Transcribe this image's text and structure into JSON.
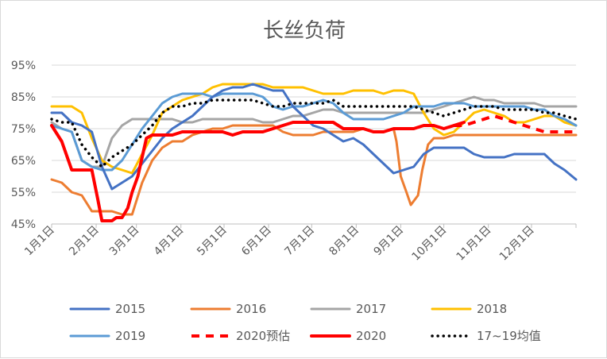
{
  "chart_data": {
    "type": "line",
    "title": "长丝负荷",
    "xlabel": "",
    "ylabel": "",
    "ylim": [
      45,
      95
    ],
    "y_ticks": [
      "45%",
      "55%",
      "65%",
      "75%",
      "85%",
      "95%"
    ],
    "y_tick_values": [
      45,
      55,
      65,
      75,
      85,
      95
    ],
    "x_ticks": [
      "1月1日",
      "2月1日",
      "3月1日",
      "4月1日",
      "5月1日",
      "6月1日",
      "7月1日",
      "8月1日",
      "9月1日",
      "10月1日",
      "11月1日",
      "12月1日"
    ],
    "x_tick_values": [
      0,
      31,
      59,
      90,
      120,
      151,
      181,
      212,
      243,
      273,
      304,
      334
    ],
    "xlim": [
      0,
      365
    ],
    "grid": "horizontal",
    "legend_position": "bottom",
    "series": [
      {
        "name": "2015",
        "color": "#4472C4",
        "style": "solid",
        "x": [
          0,
          7,
          14,
          21,
          28,
          35,
          42,
          49,
          56,
          63,
          70,
          77,
          84,
          91,
          98,
          105,
          112,
          119,
          126,
          133,
          140,
          147,
          154,
          161,
          168,
          175,
          182,
          189,
          196,
          203,
          210,
          217,
          224,
          231,
          238,
          245,
          252,
          259,
          266,
          273,
          280,
          287,
          294,
          301,
          308,
          315,
          322,
          329,
          336,
          343,
          350,
          357,
          365
        ],
        "y": [
          80,
          80,
          77,
          76,
          74,
          63,
          56,
          58,
          60,
          64,
          68,
          72,
          75,
          77,
          79,
          82,
          85,
          87,
          88,
          88,
          89,
          88,
          87,
          87,
          82,
          79,
          76,
          75,
          73,
          71,
          72,
          70,
          67,
          64,
          61,
          62,
          63,
          67,
          69,
          69,
          69,
          69,
          67,
          66,
          66,
          66,
          67,
          67,
          67,
          67,
          64,
          62,
          59
        ]
      },
      {
        "name": "2016",
        "color": "#ED7D31",
        "style": "solid",
        "x": [
          0,
          7,
          14,
          21,
          28,
          35,
          42,
          49,
          56,
          63,
          70,
          77,
          84,
          91,
          98,
          105,
          112,
          119,
          126,
          133,
          140,
          147,
          154,
          161,
          168,
          175,
          182,
          189,
          196,
          203,
          210,
          217,
          224,
          231,
          238,
          240,
          243,
          247,
          250,
          255,
          258,
          262,
          266,
          273,
          280,
          287,
          294,
          301,
          308,
          315,
          322,
          329,
          336,
          343,
          350,
          357,
          365
        ],
        "y": [
          59,
          58,
          55,
          54,
          49,
          49,
          49,
          48,
          48,
          58,
          65,
          69,
          71,
          71,
          73,
          74,
          75,
          75,
          76,
          76,
          76,
          76,
          76,
          74,
          73,
          73,
          73,
          74,
          74,
          74,
          74,
          75,
          74,
          74,
          75,
          71,
          60,
          55,
          51,
          54,
          62,
          70,
          72,
          72,
          73,
          73,
          73,
          73,
          73,
          73,
          73,
          73,
          73,
          73,
          73,
          73,
          73
        ]
      },
      {
        "name": "2017",
        "color": "#A5A5A5",
        "style": "solid",
        "x": [
          0,
          7,
          14,
          21,
          28,
          35,
          42,
          49,
          56,
          63,
          70,
          77,
          84,
          91,
          98,
          105,
          112,
          119,
          126,
          133,
          140,
          147,
          154,
          161,
          168,
          175,
          182,
          189,
          196,
          203,
          210,
          217,
          224,
          231,
          238,
          245,
          252,
          259,
          266,
          273,
          280,
          287,
          294,
          301,
          308,
          315,
          322,
          329,
          336,
          343,
          350,
          357,
          365
        ],
        "y": [
          77,
          75,
          74,
          65,
          63,
          63,
          72,
          76,
          78,
          78,
          78,
          78,
          78,
          77,
          77,
          78,
          78,
          78,
          78,
          78,
          78,
          77,
          77,
          78,
          79,
          79,
          80,
          81,
          81,
          80,
          80,
          80,
          80,
          80,
          80,
          80,
          80,
          80,
          81,
          82,
          83,
          84,
          85,
          84,
          84,
          83,
          83,
          83,
          83,
          82,
          82,
          82,
          82
        ]
      },
      {
        "name": "2018",
        "color": "#FFC000",
        "style": "solid",
        "x": [
          0,
          7,
          14,
          21,
          28,
          35,
          42,
          49,
          56,
          63,
          70,
          77,
          84,
          91,
          98,
          105,
          112,
          119,
          126,
          133,
          140,
          147,
          154,
          161,
          168,
          175,
          182,
          189,
          196,
          203,
          210,
          217,
          224,
          231,
          238,
          245,
          252,
          259,
          266,
          273,
          280,
          287,
          294,
          301,
          308,
          315,
          322,
          329,
          336,
          343,
          350,
          357,
          365
        ],
        "y": [
          82,
          82,
          82,
          80,
          72,
          65,
          63,
          62,
          61,
          67,
          73,
          80,
          82,
          84,
          85,
          86,
          88,
          89,
          89,
          89,
          89,
          89,
          88,
          88,
          88,
          88,
          87,
          86,
          86,
          86,
          87,
          87,
          87,
          86,
          87,
          87,
          86,
          80,
          75,
          73,
          74,
          77,
          80,
          81,
          80,
          79,
          77,
          77,
          78,
          79,
          79,
          77,
          76
        ]
      },
      {
        "name": "2019",
        "color": "#5B9BD5",
        "style": "solid",
        "x": [
          0,
          7,
          14,
          21,
          28,
          35,
          42,
          49,
          56,
          63,
          70,
          77,
          84,
          91,
          98,
          105,
          112,
          119,
          126,
          133,
          140,
          147,
          154,
          161,
          168,
          175,
          182,
          189,
          196,
          203,
          210,
          217,
          224,
          231,
          238,
          245,
          252,
          259,
          266,
          273,
          280,
          287,
          294,
          301,
          308,
          315,
          322,
          329,
          336,
          343,
          350,
          357,
          365
        ],
        "y": [
          76,
          75,
          74,
          65,
          63,
          62,
          62,
          65,
          70,
          75,
          79,
          83,
          85,
          86,
          86,
          86,
          85,
          86,
          86,
          86,
          86,
          85,
          82,
          81,
          82,
          82,
          83,
          84,
          83,
          80,
          78,
          78,
          78,
          78,
          79,
          80,
          82,
          82,
          82,
          83,
          83,
          83,
          82,
          82,
          82,
          82,
          82,
          82,
          81,
          81,
          79,
          78,
          76
        ]
      },
      {
        "name": "2020预估",
        "color": "#FF0000",
        "style": "dashed",
        "x": [
          280,
          287,
          294,
          301,
          308,
          315,
          322,
          329,
          336,
          343,
          350,
          357,
          365
        ],
        "y": [
          76,
          76,
          77,
          78,
          79,
          78,
          77,
          76,
          75,
          74,
          74,
          74,
          74
        ]
      },
      {
        "name": "2020",
        "color": "#FF0000",
        "style": "solid",
        "x": [
          0,
          7,
          14,
          21,
          28,
          32,
          35,
          38,
          42,
          45,
          49,
          53,
          56,
          60,
          63,
          66,
          70,
          74,
          77,
          84,
          91,
          98,
          105,
          112,
          119,
          126,
          133,
          140,
          147,
          154,
          161,
          168,
          175,
          182,
          189,
          196,
          203,
          210,
          217,
          224,
          231,
          238,
          245,
          252,
          259,
          266,
          273,
          280,
          287
        ],
        "y": [
          76,
          71,
          62,
          62,
          62,
          53,
          46,
          46,
          46,
          47,
          47,
          50,
          55,
          60,
          66,
          72,
          73,
          73,
          73,
          73,
          74,
          74,
          74,
          74,
          74,
          73,
          74,
          74,
          74,
          75,
          76,
          77,
          77,
          77,
          77,
          77,
          75,
          75,
          75,
          74,
          74,
          75,
          75,
          75,
          76,
          76,
          75,
          76,
          77
        ]
      },
      {
        "name": "17~19均值",
        "color": "#000000",
        "style": "dotted",
        "x": [
          0,
          7,
          14,
          21,
          28,
          35,
          42,
          49,
          56,
          63,
          70,
          77,
          84,
          91,
          98,
          105,
          112,
          119,
          126,
          133,
          140,
          147,
          154,
          161,
          168,
          175,
          182,
          189,
          196,
          203,
          210,
          217,
          224,
          231,
          238,
          245,
          252,
          259,
          266,
          273,
          280,
          287,
          294,
          301,
          308,
          315,
          322,
          329,
          336,
          343,
          350,
          357,
          365
        ],
        "y": [
          78,
          77,
          77,
          70,
          66,
          63,
          66,
          68,
          70,
          73,
          76,
          80,
          82,
          82,
          83,
          83,
          84,
          84,
          84,
          84,
          84,
          83,
          82,
          82,
          83,
          83,
          83,
          83,
          84,
          82,
          82,
          82,
          82,
          82,
          82,
          82,
          82,
          81,
          80,
          79,
          80,
          81,
          82,
          82,
          82,
          81,
          81,
          81,
          81,
          80,
          80,
          79,
          78
        ]
      }
    ]
  }
}
